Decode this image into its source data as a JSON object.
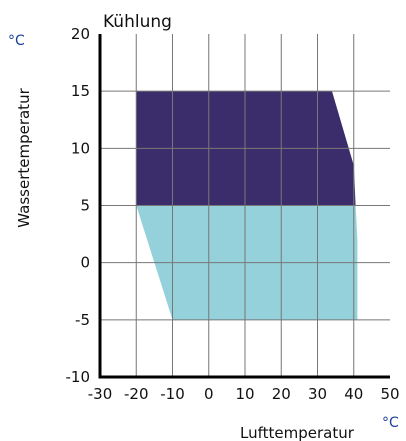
{
  "chart_data": {
    "type": "area",
    "title": "Kühlung",
    "xlabel": "Lufttemperatur",
    "ylabel": "Wassertemperatur",
    "x_unit": "°C",
    "y_unit": "°C",
    "xlim": [
      -30,
      50
    ],
    "ylim": [
      -10,
      20
    ],
    "x_ticks": [
      "-30",
      "-20",
      "-10",
      "0",
      "10",
      "20",
      "30",
      "40",
      "50"
    ],
    "y_ticks": [
      "20",
      "15",
      "10",
      "5",
      "0",
      "-5",
      "-10"
    ],
    "grid": true,
    "series": [
      {
        "color": "#3b2d6b",
        "x": [
          -20,
          34,
          40,
          40.5,
          -20
        ],
        "y": [
          15,
          15,
          8.5,
          5,
          5
        ]
      },
      {
        "color": "#95d1da",
        "x": [
          -20,
          40.5,
          41,
          41,
          -10
        ],
        "y": [
          5,
          5,
          2,
          -5,
          -5
        ]
      }
    ]
  },
  "colors": {
    "unit": "#1b3f9a",
    "grid": "#777777",
    "axis": "#000000"
  }
}
